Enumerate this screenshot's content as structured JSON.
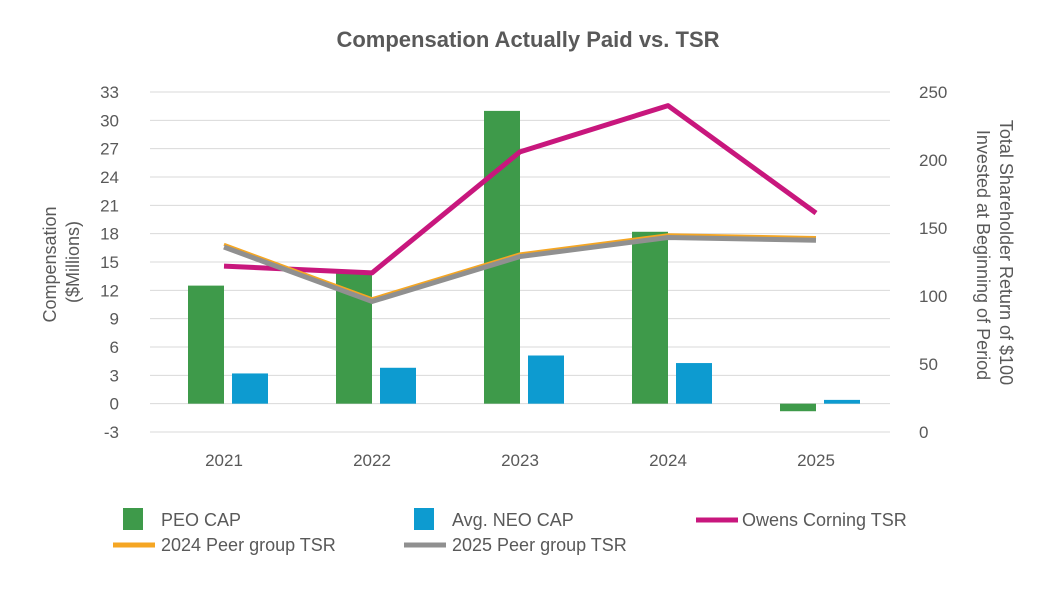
{
  "chart_data": {
    "type": "bar",
    "title": "Compensation Actually Paid vs. TSR",
    "categories": [
      "2021",
      "2022",
      "2023",
      "2024",
      "2025"
    ],
    "ylabel_left": [
      "Compensation",
      "($Millions)"
    ],
    "ylabel_right": [
      "Total Shareholder Return of $100",
      "Invested at Beginning of Period"
    ],
    "ylim_left": [
      -3,
      33
    ],
    "yticks_left": [
      "-3",
      "0",
      "3",
      "6",
      "9",
      "12",
      "15",
      "18",
      "21",
      "24",
      "27",
      "30",
      "33"
    ],
    "ylim_right": [
      0,
      250
    ],
    "yticks_right": [
      "0",
      "50",
      "100",
      "150",
      "200",
      "250"
    ],
    "grid": true,
    "legend_position": "bottom",
    "bar_series": [
      {
        "name": "PEO CAP",
        "color": "#3e9a4a",
        "values": [
          12.5,
          14.0,
          31.0,
          18.2,
          -0.8
        ]
      },
      {
        "name": "Avg. NEO CAP",
        "color": "#0d9bd0",
        "values": [
          3.2,
          3.8,
          5.1,
          4.3,
          0.4
        ]
      }
    ],
    "line_series": [
      {
        "name": "Owens Corning TSR",
        "color": "#c8177d",
        "values": [
          122,
          117,
          206,
          240,
          161
        ]
      },
      {
        "name": "2024 Peer group TSR",
        "color": "#f5a623",
        "values": [
          138,
          98,
          131,
          145,
          143
        ]
      },
      {
        "name": "2025 Peer group TSR",
        "color": "#909090",
        "values": [
          136,
          96,
          129,
          143,
          141
        ]
      }
    ]
  }
}
